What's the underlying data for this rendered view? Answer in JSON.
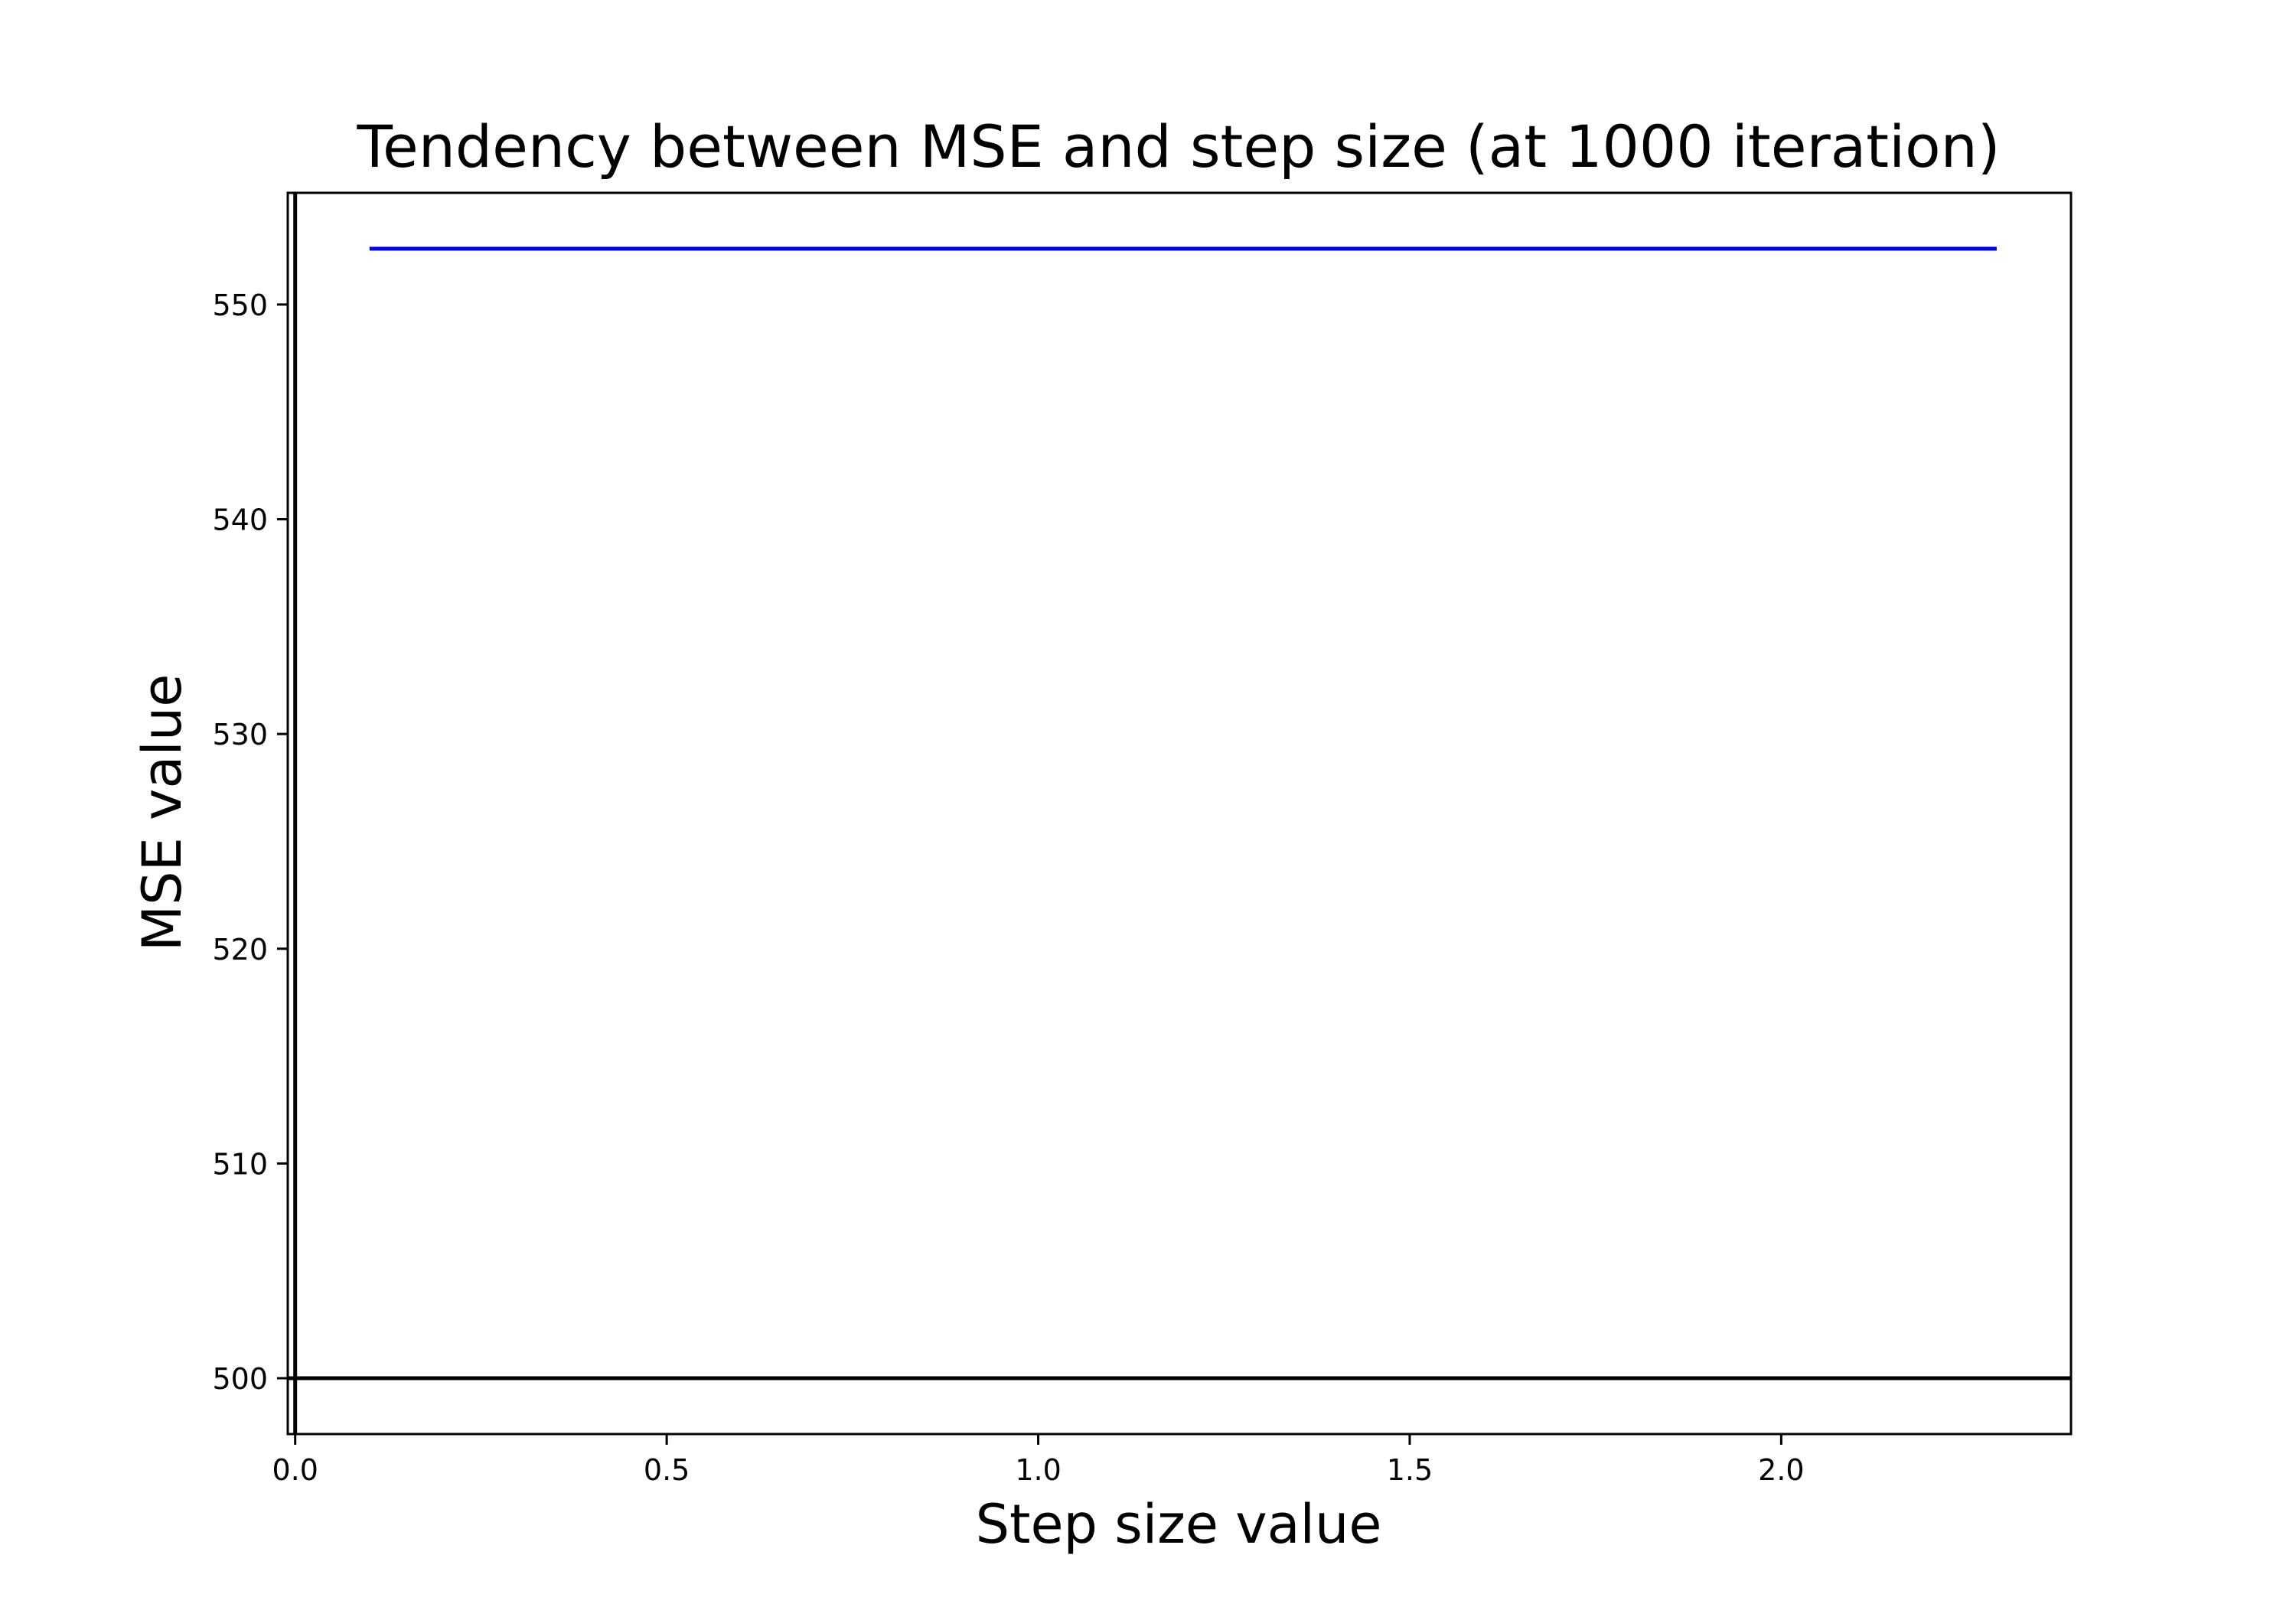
{
  "chart_data": {
    "type": "line",
    "title": "Tendency between MSE and step size (at 1000 iteration)",
    "xlabel": "Step size value",
    "ylabel": "MSE value",
    "xlim": [
      -0.01,
      2.39
    ],
    "ylim": [
      497.4,
      555.2
    ],
    "xticks": [
      0.0,
      0.5,
      1.0,
      1.5,
      2.0
    ],
    "xtick_labels": [
      "0.0",
      "0.5",
      "1.0",
      "1.5",
      "2.0"
    ],
    "yticks": [
      500,
      510,
      520,
      530,
      540,
      550
    ],
    "ytick_labels": [
      "500",
      "510",
      "520",
      "530",
      "540",
      "550"
    ],
    "grid": false,
    "legend": "none",
    "series": [
      {
        "color": "#0000ff",
        "x": [
          0.1,
          2.29
        ],
        "y": [
          552.6,
          552.6
        ]
      }
    ],
    "reference_lines": [
      {
        "orientation": "horizontal",
        "value": 500,
        "color": "#000000"
      },
      {
        "orientation": "vertical",
        "value": 0,
        "color": "#000000"
      }
    ]
  }
}
